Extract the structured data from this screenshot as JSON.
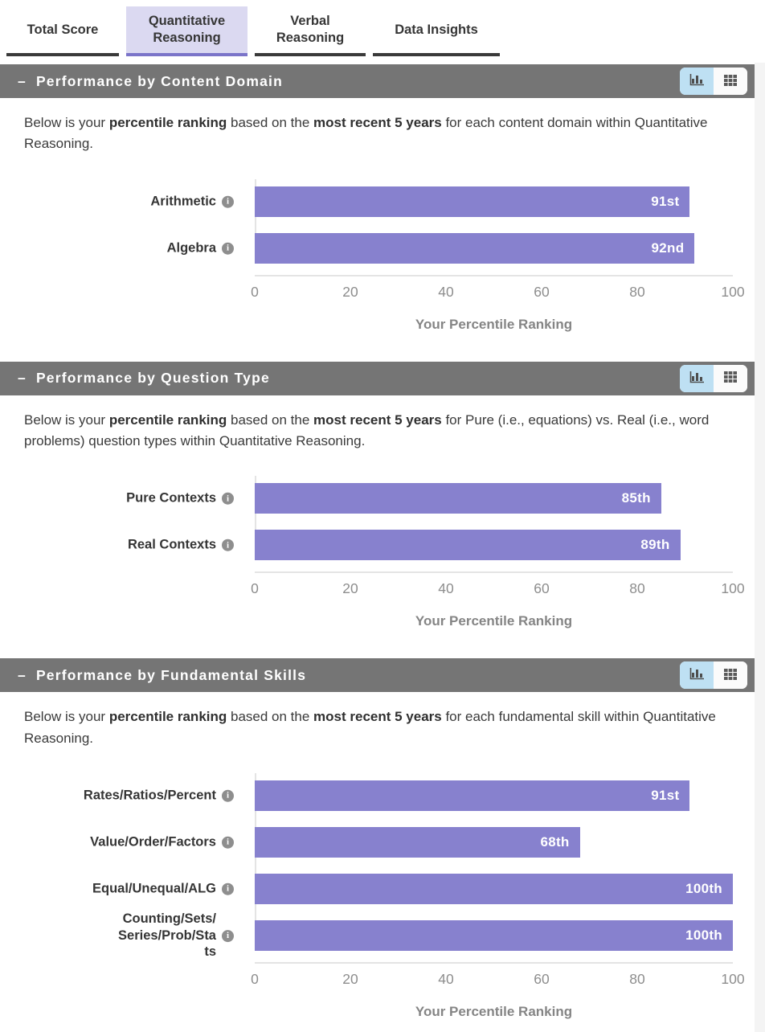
{
  "ui": {
    "collapse_glyph": "–",
    "info_glyph": "i"
  },
  "colors": {
    "bar": "#8781ce",
    "section_header_bg": "#757575",
    "selected_tab_bg": "#dbd9f1",
    "selected_tab_underline": "#7b74c9",
    "tab_underline": "#3a3a3a",
    "toggle_active_bg": "#bee0f3",
    "axis_line": "#e4e4e4"
  },
  "tabs": [
    {
      "label": "Total Score",
      "selected": false
    },
    {
      "label": "Quantitative Reasoning",
      "selected": true
    },
    {
      "label": "Verbal Reasoning",
      "selected": false
    },
    {
      "label": "Data Insights",
      "selected": false
    }
  ],
  "sections": [
    {
      "title": "Performance by Content Domain",
      "description": {
        "before": "Below is your ",
        "bold1": "percentile ranking",
        "mid": " based on the ",
        "bold2": "most recent 5 years",
        "after": " for each content domain within Quantitative Reasoning."
      },
      "chart_data": {
        "type": "bar",
        "orientation": "horizontal",
        "categories": [
          "Arithmetic",
          "Algebra"
        ],
        "values": [
          91,
          92
        ],
        "value_labels": [
          "91st",
          "92nd"
        ],
        "xlabel": "Your Percentile Ranking",
        "xlim": [
          0,
          100
        ],
        "xticks": [
          0,
          20,
          40,
          60,
          80,
          100
        ],
        "bar_color": "#8781ce",
        "grid": false,
        "legend": false
      }
    },
    {
      "title": "Performance by Question Type",
      "description": {
        "before": "Below is your ",
        "bold1": "percentile ranking",
        "mid": " based on the ",
        "bold2": "most recent 5 years",
        "after": " for Pure (i.e., equations) vs. Real (i.e., word problems) question types within Quantitative Reasoning."
      },
      "chart_data": {
        "type": "bar",
        "orientation": "horizontal",
        "categories": [
          "Pure Contexts",
          "Real Contexts"
        ],
        "values": [
          85,
          89
        ],
        "value_labels": [
          "85th",
          "89th"
        ],
        "xlabel": "Your Percentile Ranking",
        "xlim": [
          0,
          100
        ],
        "xticks": [
          0,
          20,
          40,
          60,
          80,
          100
        ],
        "bar_color": "#8781ce",
        "grid": false,
        "legend": false
      }
    },
    {
      "title": "Performance by Fundamental Skills",
      "description": {
        "before": "Below is your ",
        "bold1": "percentile ranking",
        "mid": " based on the ",
        "bold2": "most recent 5 years",
        "after": " for each fundamental skill within Quantitative Reasoning."
      },
      "chart_data": {
        "type": "bar",
        "orientation": "horizontal",
        "categories": [
          "Rates/Ratios/Percent",
          "Value/Order/Factors",
          "Equal/Unequal/ALG",
          "Counting/Sets/\nSeries/Prob/Sta\nts"
        ],
        "values": [
          91,
          68,
          100,
          100
        ],
        "value_labels": [
          "91st",
          "68th",
          "100th",
          "100th"
        ],
        "xlabel": "Your Percentile Ranking",
        "xlim": [
          0,
          100
        ],
        "xticks": [
          0,
          20,
          40,
          60,
          80,
          100
        ],
        "bar_color": "#8781ce",
        "grid": false,
        "legend": false
      }
    }
  ]
}
